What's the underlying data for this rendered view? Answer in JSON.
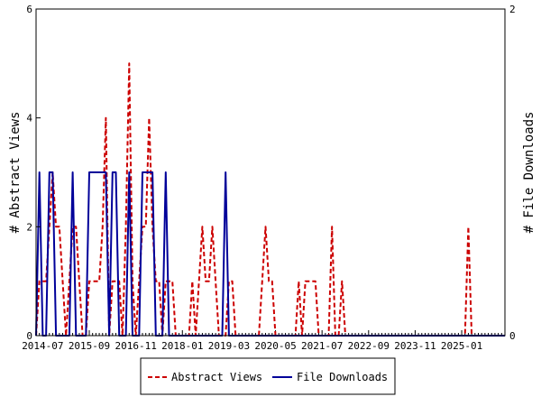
{
  "chart_data": {
    "type": "line",
    "ylabel": "# Abstract Views",
    "y2label": "# File Downloads",
    "ylim": [
      0,
      6
    ],
    "y2lim": [
      0,
      2
    ],
    "yticks": [
      0,
      2,
      4,
      6
    ],
    "y2ticks": [
      0,
      2
    ],
    "xlim": [
      "2014-05",
      "2026-02"
    ],
    "xticks": [
      "2014-07",
      "2015-09",
      "2016-11",
      "2018-01",
      "2019-03",
      "2020-05",
      "2021-07",
      "2022-09",
      "2023-11",
      "2025-01"
    ],
    "legend_position": "bottom",
    "series": [
      {
        "name": "Abstract Views",
        "color": "#cc0000",
        "dash": "dashed",
        "axis": "left",
        "points": [
          [
            "2014-05",
            0
          ],
          [
            "2014-06",
            1
          ],
          [
            "2014-07",
            1
          ],
          [
            "2014-08",
            1
          ],
          [
            "2014-09",
            2
          ],
          [
            "2014-10",
            3
          ],
          [
            "2014-11",
            2
          ],
          [
            "2014-12",
            2
          ],
          [
            "2015-01",
            1
          ],
          [
            "2015-02",
            0
          ],
          [
            "2015-03",
            1
          ],
          [
            "2015-04",
            2
          ],
          [
            "2015-05",
            2
          ],
          [
            "2015-06",
            1
          ],
          [
            "2015-07",
            0
          ],
          [
            "2015-08",
            0
          ],
          [
            "2015-09",
            1
          ],
          [
            "2015-10",
            1
          ],
          [
            "2015-11",
            1
          ],
          [
            "2015-12",
            1
          ],
          [
            "2016-01",
            2
          ],
          [
            "2016-02",
            4
          ],
          [
            "2016-03",
            0
          ],
          [
            "2016-04",
            1
          ],
          [
            "2016-05",
            1
          ],
          [
            "2016-06",
            1
          ],
          [
            "2016-07",
            0
          ],
          [
            "2016-08",
            2
          ],
          [
            "2016-09",
            5
          ],
          [
            "2016-10",
            1
          ],
          [
            "2016-11",
            0
          ],
          [
            "2016-12",
            1
          ],
          [
            "2017-01",
            2
          ],
          [
            "2017-02",
            2
          ],
          [
            "2017-03",
            4
          ],
          [
            "2017-04",
            2
          ],
          [
            "2017-05",
            1
          ],
          [
            "2017-06",
            1
          ],
          [
            "2017-07",
            0
          ],
          [
            "2017-08",
            1
          ],
          [
            "2017-09",
            1
          ],
          [
            "2017-10",
            1
          ],
          [
            "2017-11",
            0
          ],
          [
            "2017-12",
            0
          ],
          [
            "2018-01",
            0
          ],
          [
            "2018-02",
            0
          ],
          [
            "2018-03",
            0
          ],
          [
            "2018-04",
            1
          ],
          [
            "2018-05",
            0
          ],
          [
            "2018-06",
            1
          ],
          [
            "2018-07",
            2
          ],
          [
            "2018-08",
            1
          ],
          [
            "2018-09",
            1
          ],
          [
            "2018-10",
            2
          ],
          [
            "2018-11",
            1
          ],
          [
            "2018-12",
            0
          ],
          [
            "2019-01",
            0
          ],
          [
            "2019-02",
            0
          ],
          [
            "2019-03",
            1
          ],
          [
            "2019-04",
            1
          ],
          [
            "2019-05",
            0
          ],
          [
            "2019-06",
            0
          ],
          [
            "2019-07",
            0
          ],
          [
            "2019-08",
            0
          ],
          [
            "2019-09",
            0
          ],
          [
            "2019-10",
            0
          ],
          [
            "2019-11",
            0
          ],
          [
            "2019-12",
            0
          ],
          [
            "2020-01",
            1
          ],
          [
            "2020-02",
            2
          ],
          [
            "2020-03",
            1
          ],
          [
            "2020-04",
            1
          ],
          [
            "2020-05",
            0
          ],
          [
            "2020-06",
            0
          ],
          [
            "2020-07",
            0
          ],
          [
            "2020-08",
            0
          ],
          [
            "2020-09",
            0
          ],
          [
            "2020-10",
            0
          ],
          [
            "2020-11",
            0
          ],
          [
            "2020-12",
            1
          ],
          [
            "2021-01",
            0
          ],
          [
            "2021-02",
            1
          ],
          [
            "2021-03",
            1
          ],
          [
            "2021-04",
            1
          ],
          [
            "2021-05",
            1
          ],
          [
            "2021-06",
            0
          ],
          [
            "2021-07",
            0
          ],
          [
            "2021-08",
            0
          ],
          [
            "2021-09",
            0
          ],
          [
            "2021-10",
            2
          ],
          [
            "2021-11",
            0
          ],
          [
            "2021-12",
            0
          ],
          [
            "2022-01",
            1
          ],
          [
            "2022-02",
            0
          ],
          [
            "2022-03",
            0
          ],
          [
            "2025-01",
            0
          ],
          [
            "2025-02",
            0
          ],
          [
            "2025-03",
            2
          ],
          [
            "2025-04",
            0
          ],
          [
            "2026-02",
            0
          ]
        ]
      },
      {
        "name": "File Downloads",
        "color": "#000099",
        "dash": "solid",
        "axis": "right",
        "points": [
          [
            "2014-05",
            0
          ],
          [
            "2014-06",
            1
          ],
          [
            "2014-07",
            0
          ],
          [
            "2014-08",
            0
          ],
          [
            "2014-09",
            1
          ],
          [
            "2014-10",
            1
          ],
          [
            "2014-11",
            0
          ],
          [
            "2014-12",
            0
          ],
          [
            "2015-01",
            0
          ],
          [
            "2015-02",
            0
          ],
          [
            "2015-03",
            0
          ],
          [
            "2015-04",
            1
          ],
          [
            "2015-05",
            0
          ],
          [
            "2015-06",
            0
          ],
          [
            "2015-07",
            0
          ],
          [
            "2015-08",
            0
          ],
          [
            "2015-09",
            1
          ],
          [
            "2015-10",
            1
          ],
          [
            "2015-11",
            1
          ],
          [
            "2015-12",
            1
          ],
          [
            "2016-01",
            1
          ],
          [
            "2016-02",
            1
          ],
          [
            "2016-03",
            0
          ],
          [
            "2016-04",
            1
          ],
          [
            "2016-05",
            1
          ],
          [
            "2016-06",
            0
          ],
          [
            "2016-07",
            0
          ],
          [
            "2016-08",
            0
          ],
          [
            "2016-09",
            1
          ],
          [
            "2016-10",
            0
          ],
          [
            "2016-11",
            0
          ],
          [
            "2016-12",
            0
          ],
          [
            "2017-01",
            1
          ],
          [
            "2017-02",
            1
          ],
          [
            "2017-03",
            1
          ],
          [
            "2017-04",
            1
          ],
          [
            "2017-05",
            0
          ],
          [
            "2017-06",
            0
          ],
          [
            "2017-07",
            0
          ],
          [
            "2017-08",
            1
          ],
          [
            "2017-09",
            0
          ],
          [
            "2017-10",
            0
          ],
          [
            "2017-11",
            0
          ],
          [
            "2017-12",
            0
          ],
          [
            "2019-01",
            0
          ],
          [
            "2019-02",
            1
          ],
          [
            "2019-03",
            0
          ],
          [
            "2019-04",
            0
          ],
          [
            "2026-02",
            0
          ]
        ]
      }
    ]
  }
}
